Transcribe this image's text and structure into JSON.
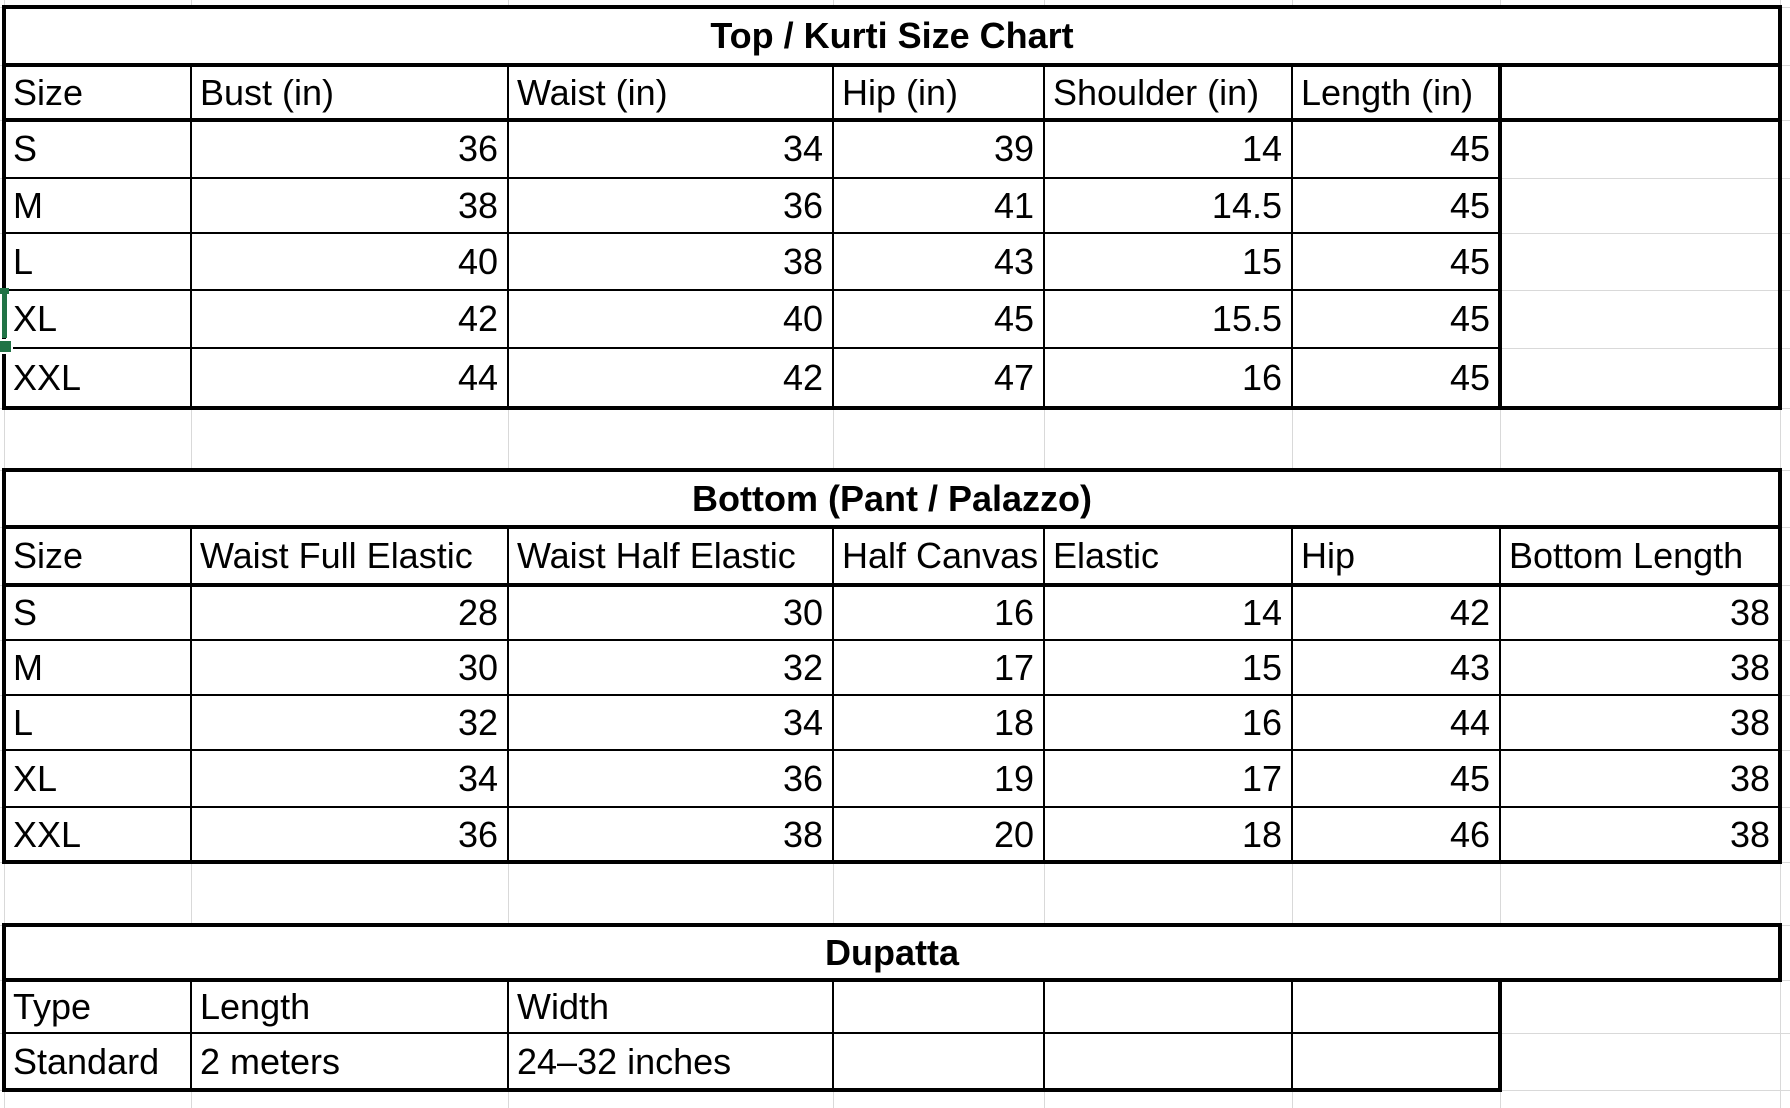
{
  "colors": {
    "background": "#ffffff",
    "gridline": "#d9d9d9",
    "table_border": "#000000",
    "text": "#000000",
    "selection": "#217346"
  },
  "tables": [
    {
      "title": "Top / Kurti Size Chart",
      "header": [
        "Size",
        "Bust (in)",
        "Waist (in)",
        "Hip (in)",
        "Shoulder (in)",
        "Length (in)",
        ""
      ],
      "rows": [
        [
          "S",
          "36",
          "34",
          "39",
          "14",
          "45"
        ],
        [
          "M",
          "38",
          "36",
          "41",
          "14.5",
          "45"
        ],
        [
          "L",
          "40",
          "38",
          "43",
          "15",
          "45"
        ],
        [
          "XL",
          "42",
          "40",
          "45",
          "15.5",
          "45"
        ],
        [
          "XXL",
          "44",
          "42",
          "47",
          "16",
          "45"
        ]
      ]
    },
    {
      "title": "Bottom (Pant / Palazzo)",
      "header": [
        "Size",
        "Waist Full Elastic",
        "Waist Half Elastic",
        "Half Canvas",
        "Elastic",
        "Hip",
        "Bottom Length"
      ],
      "rows": [
        [
          "S",
          "28",
          "30",
          "16",
          "14",
          "42",
          "38"
        ],
        [
          "M",
          "30",
          "32",
          "17",
          "15",
          "43",
          "38"
        ],
        [
          "L",
          "32",
          "34",
          "18",
          "16",
          "44",
          "38"
        ],
        [
          "XL",
          "34",
          "36",
          "19",
          "17",
          "45",
          "38"
        ],
        [
          "XXL",
          "36",
          "38",
          "20",
          "18",
          "46",
          "38"
        ]
      ]
    },
    {
      "title": "Dupatta",
      "header": [
        "Type",
        "Length",
        "Width",
        "",
        "",
        ""
      ],
      "rows": [
        [
          "Standard",
          "2 meters",
          "24–32 inches",
          "",
          "",
          ""
        ]
      ]
    }
  ]
}
